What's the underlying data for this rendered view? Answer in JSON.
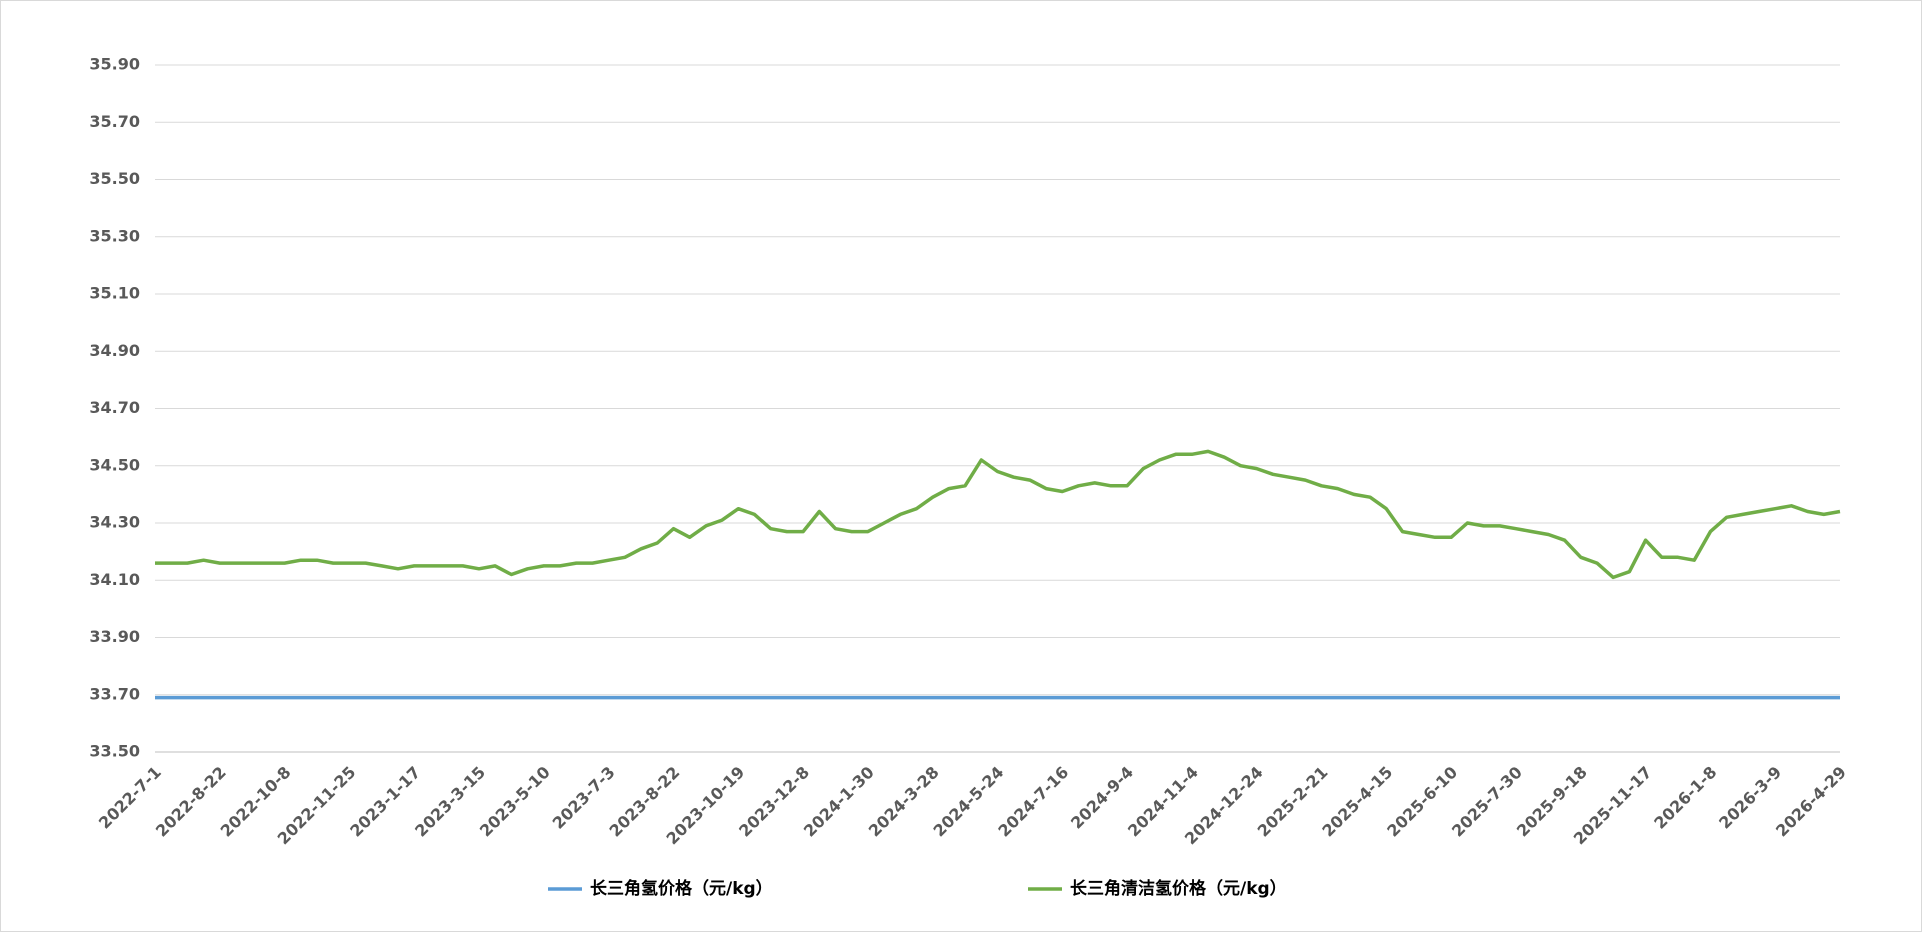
{
  "chart_data": {
    "type": "line",
    "categories": [
      "2022-7-1",
      null,
      null,
      null,
      "2022-8-22",
      null,
      null,
      null,
      "2022-10-8",
      null,
      null,
      null,
      "2022-11-25",
      null,
      null,
      null,
      "2023-1-17",
      null,
      null,
      null,
      "2023-3-15",
      null,
      null,
      null,
      "2023-5-10",
      null,
      null,
      null,
      "2023-7-3",
      null,
      null,
      null,
      "2023-8-22",
      null,
      null,
      null,
      "2023-10-19",
      null,
      null,
      null,
      "2023-12-8",
      null,
      null,
      null,
      "2024-1-30",
      null,
      null,
      null,
      "2024-3-28",
      null,
      null,
      null,
      "2024-5-24",
      null,
      null,
      null,
      "2024-7-16",
      null,
      null,
      null,
      "2024-9-4",
      null,
      null,
      null,
      "2024-11-4",
      null,
      null,
      null,
      "2024-12-24",
      null,
      null,
      null,
      "2025-2-21",
      null,
      null,
      null,
      "2025-4-15",
      null,
      null,
      null,
      "2025-6-10",
      null,
      null,
      null,
      "2025-7-30",
      null,
      null,
      null,
      "2025-9-18",
      null,
      null,
      null,
      "2025-11-17",
      null,
      null,
      null,
      "2026-1-8",
      null,
      null,
      null,
      "2026-3-9",
      null,
      null,
      null,
      "2026-4-29"
    ],
    "series": [
      {
        "name": "长三角氢价格（元/kg）",
        "color": "#5b9bd5",
        "values": [
          33.69,
          33.69,
          33.69,
          33.69,
          33.69,
          33.69,
          33.69,
          33.69,
          33.69,
          33.69,
          33.69,
          33.69,
          33.69,
          33.69,
          33.69,
          33.69,
          33.69,
          33.69,
          33.69,
          33.69,
          33.69,
          33.69,
          33.69,
          33.69,
          33.69,
          33.69,
          33.69,
          33.69,
          33.69,
          33.69,
          33.69,
          33.69,
          33.69,
          33.69,
          33.69,
          33.69,
          33.69,
          33.69,
          33.69,
          33.69,
          33.69,
          33.69,
          33.69,
          33.69,
          33.69,
          33.69,
          33.69,
          33.69,
          33.69,
          33.69,
          33.69,
          33.69,
          33.69,
          33.69,
          33.69,
          33.69,
          33.69,
          33.69,
          33.69,
          33.69,
          33.69,
          33.69,
          33.69,
          33.69,
          33.69,
          33.69,
          33.69,
          33.69,
          33.69,
          33.69,
          33.69,
          33.69,
          33.69,
          33.69,
          33.69,
          33.69,
          33.69,
          33.69,
          33.69,
          33.69,
          33.69,
          33.69,
          33.69,
          33.69,
          33.69,
          33.69,
          33.69,
          33.69,
          33.69,
          33.69,
          33.69,
          33.69,
          33.69,
          33.69,
          33.69,
          33.69,
          33.69,
          33.69,
          33.69,
          33.69,
          33.69,
          33.69,
          33.69,
          33.69,
          33.69
        ]
      },
      {
        "name": "长三角清洁氢价格（元/kg）",
        "color": "#70ad47",
        "values": [
          34.16,
          34.16,
          34.16,
          34.17,
          34.16,
          34.16,
          34.16,
          34.16,
          34.16,
          34.17,
          34.17,
          34.16,
          34.16,
          34.16,
          34.15,
          34.14,
          34.15,
          34.15,
          34.15,
          34.15,
          34.14,
          34.15,
          34.12,
          34.14,
          34.15,
          34.15,
          34.16,
          34.16,
          34.17,
          34.18,
          34.21,
          34.23,
          34.28,
          34.25,
          34.29,
          34.31,
          34.35,
          34.33,
          34.28,
          34.27,
          34.27,
          34.34,
          34.28,
          34.27,
          34.27,
          34.3,
          34.33,
          34.35,
          34.39,
          34.42,
          34.43,
          34.52,
          34.48,
          34.46,
          34.45,
          34.42,
          34.41,
          34.43,
          34.44,
          34.43,
          34.43,
          34.49,
          34.52,
          34.54,
          34.54,
          34.55,
          34.53,
          34.5,
          34.49,
          34.47,
          34.46,
          34.45,
          34.43,
          34.42,
          34.4,
          34.39,
          34.35,
          34.27,
          34.26,
          34.25,
          34.25,
          34.3,
          34.29,
          34.29,
          34.28,
          34.27,
          34.26,
          34.24,
          34.18,
          34.16,
          34.11,
          34.13,
          34.24,
          34.18,
          34.18,
          34.17,
          34.27,
          34.32,
          34.33,
          34.34,
          34.35,
          34.36,
          34.34,
          34.33,
          34.34
        ]
      }
    ],
    "ylim": [
      33.5,
      35.9
    ],
    "yticks": [
      {
        "value": 33.5,
        "label": "33.50"
      },
      {
        "value": 33.7,
        "label": "33.70"
      },
      {
        "value": 33.9,
        "label": "33.90"
      },
      {
        "value": 34.1,
        "label": "34.10"
      },
      {
        "value": 34.3,
        "label": "34.30"
      },
      {
        "value": 34.5,
        "label": "34.50"
      },
      {
        "value": 34.7,
        "label": "34.70"
      },
      {
        "value": 34.9,
        "label": "34.90"
      },
      {
        "value": 35.1,
        "label": "35.10"
      },
      {
        "value": 35.3,
        "label": "35.30"
      },
      {
        "value": 35.5,
        "label": "35.50"
      },
      {
        "value": 35.7,
        "label": "35.70"
      },
      {
        "value": 35.9,
        "label": "35.90"
      }
    ],
    "grid": true
  }
}
